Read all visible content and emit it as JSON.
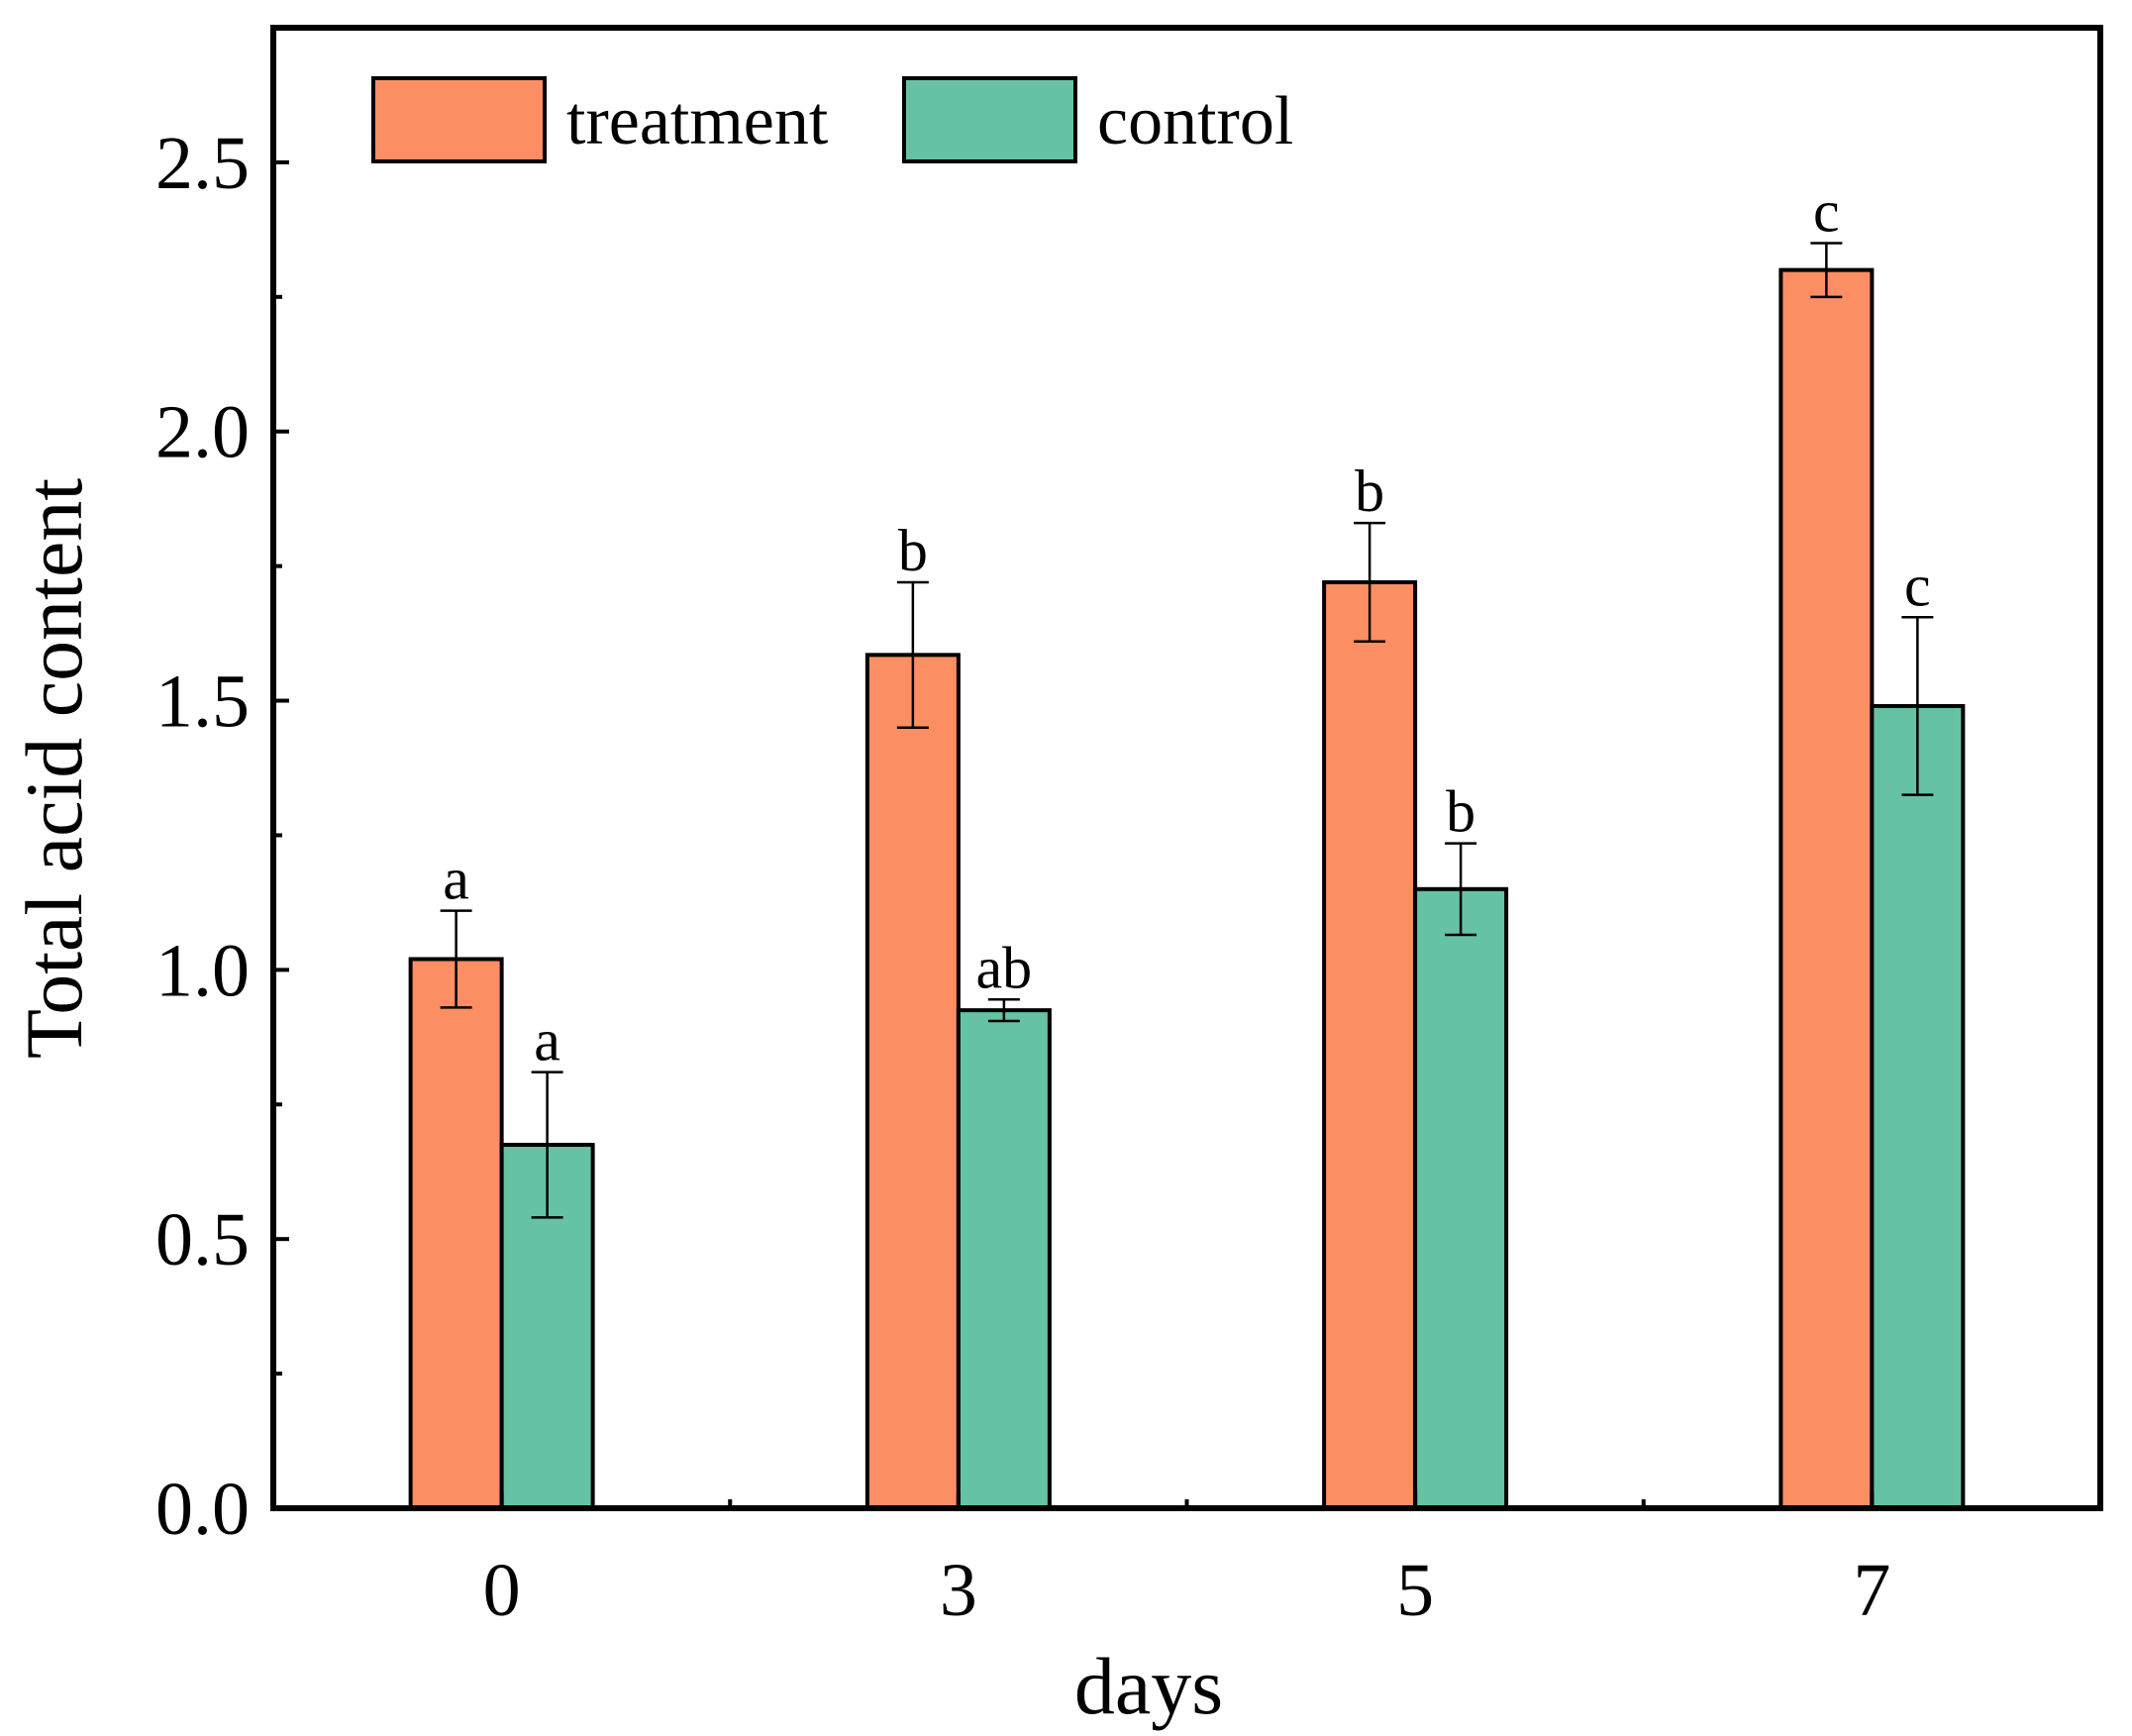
{
  "chart_data": {
    "type": "bar",
    "title": "",
    "xlabel": "days",
    "ylabel": "Total acid content",
    "categories": [
      "0",
      "3",
      "5",
      "7"
    ],
    "ylim": [
      0,
      2.75
    ],
    "yticks": [
      0.0,
      0.5,
      1.0,
      1.5,
      2.0,
      2.5
    ],
    "ytick_labels": [
      "0.0",
      "0.5",
      "1.0",
      "1.5",
      "2.0",
      "2.5"
    ],
    "grid": false,
    "legend_position": "top-left",
    "series": [
      {
        "name": "treatment",
        "color": "#FC8E63",
        "values": [
          1.02,
          1.585,
          1.72,
          2.3
        ],
        "errors": [
          0.09,
          0.135,
          0.11,
          0.05
        ],
        "labels": [
          "a",
          "b",
          "b",
          "c"
        ]
      },
      {
        "name": "control",
        "color": "#66C2A5",
        "values": [
          0.675,
          0.925,
          1.15,
          1.49
        ],
        "errors": [
          0.135,
          0.02,
          0.085,
          0.165
        ],
        "labels": [
          "a",
          "ab",
          "b",
          "c"
        ]
      }
    ]
  }
}
